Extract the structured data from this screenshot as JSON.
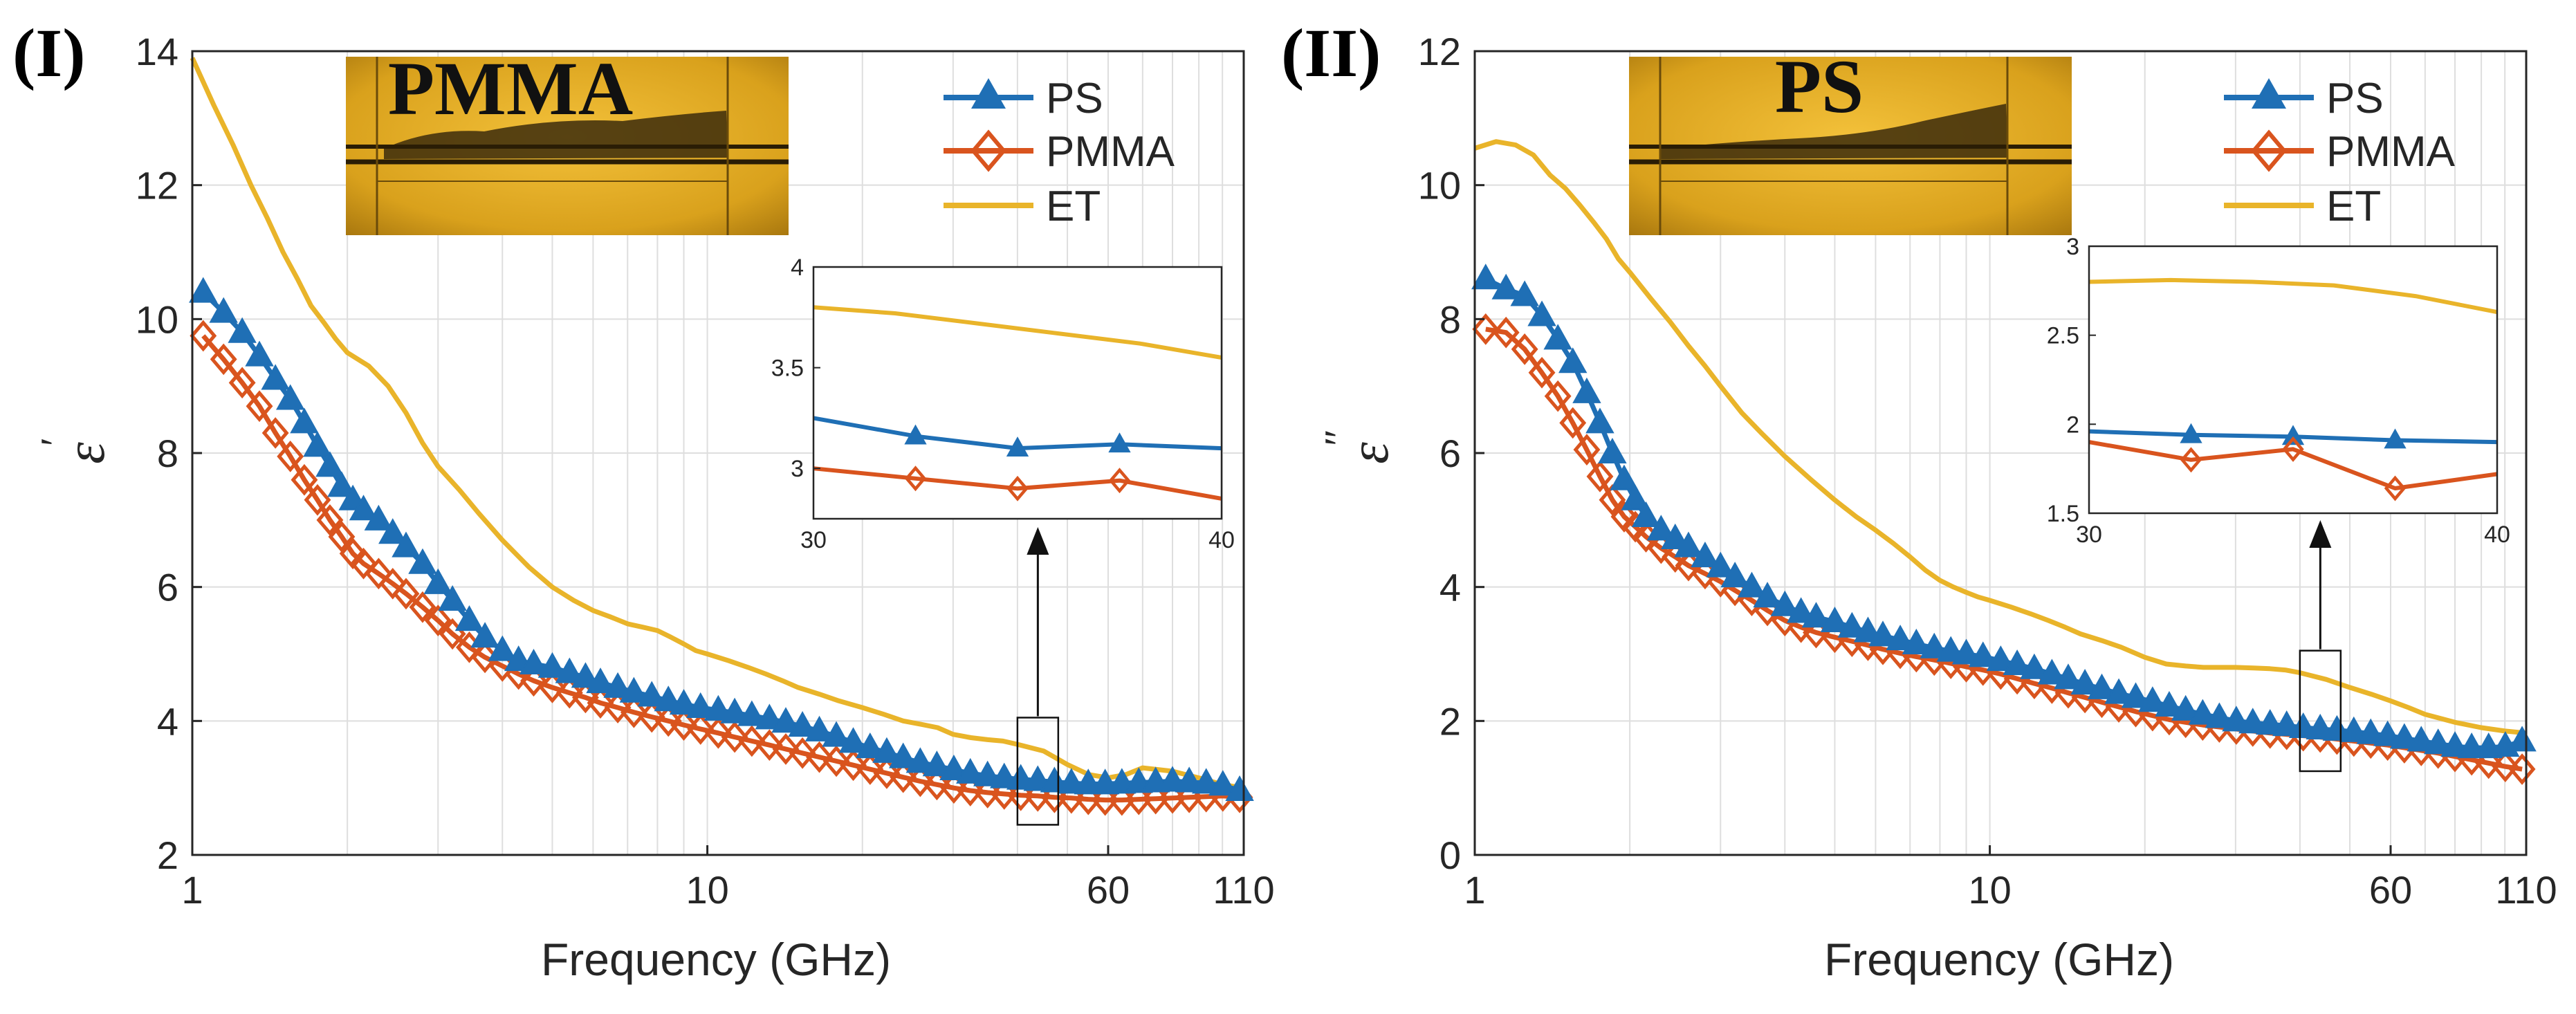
{
  "colors": {
    "PS": "#1f6fb5",
    "PMMA": "#d9541e",
    "ET": "#e9b42a"
  },
  "chart_data": [
    {
      "type": "line",
      "panel_label": "(I)",
      "xscale": "log",
      "xlim": [
        1,
        110
      ],
      "ylim": [
        2,
        14
      ],
      "xticks": [
        1,
        10,
        60,
        110
      ],
      "xtick_labels": [
        "1",
        "10",
        "60",
        "110"
      ],
      "yticks": [
        2,
        4,
        6,
        8,
        10,
        12,
        14
      ],
      "ytick_labels": [
        "2",
        "4",
        "6",
        "8",
        "10",
        "12",
        "14"
      ],
      "xlabel": "Frequency (GHz)",
      "ylabel": "ε′",
      "ylabel_symbol": "ε",
      "ylabel_prime": "′",
      "photo_label": "PMMA",
      "legend": [
        "PS",
        "PMMA",
        "ET"
      ],
      "legend_position": "top-right",
      "grid": true,
      "series": [
        {
          "name": "PS",
          "marker": "triangle",
          "x": [
            1.05,
            1.15,
            1.25,
            1.35,
            1.45,
            1.55,
            1.65,
            1.75,
            1.85,
            1.95,
            2.05,
            2.15,
            2.3,
            2.45,
            2.6,
            2.8,
            3.0,
            3.2,
            3.45,
            3.7,
            4.0,
            4.3,
            4.6,
            5.0,
            5.4,
            5.8,
            6.2,
            6.7,
            7.2,
            7.8,
            8.4,
            9.0,
            9.7,
            10.5,
            11.3,
            12.2,
            13.2,
            14.2,
            15.3,
            16.5,
            17.8,
            19.2,
            20.7,
            22.3,
            24.0,
            25.9,
            27.9,
            30.1,
            32.4,
            35.0,
            37.7,
            40.6,
            43.8,
            47.2,
            50.9,
            54.9,
            59.2,
            63.8,
            68.8,
            74.2,
            80.0,
            86.2,
            93.0,
            100.2,
            108.0
          ],
          "y": [
            10.4,
            10.1,
            9.8,
            9.45,
            9.1,
            8.8,
            8.45,
            8.1,
            7.8,
            7.5,
            7.3,
            7.15,
            7.0,
            6.8,
            6.6,
            6.35,
            6.05,
            5.8,
            5.5,
            5.25,
            5.05,
            4.9,
            4.85,
            4.8,
            4.72,
            4.65,
            4.57,
            4.5,
            4.43,
            4.37,
            4.3,
            4.25,
            4.2,
            4.16,
            4.12,
            4.08,
            4.03,
            3.98,
            3.92,
            3.85,
            3.77,
            3.68,
            3.6,
            3.53,
            3.45,
            3.38,
            3.33,
            3.27,
            3.22,
            3.18,
            3.15,
            3.13,
            3.11,
            3.09,
            3.07,
            3.06,
            3.06,
            3.07,
            3.08,
            3.09,
            3.1,
            3.09,
            3.07,
            3.04,
            2.96
          ]
        },
        {
          "name": "PMMA",
          "marker": "diamond",
          "x": [
            1.05,
            1.15,
            1.25,
            1.35,
            1.45,
            1.55,
            1.65,
            1.75,
            1.85,
            1.95,
            2.05,
            2.15,
            2.3,
            2.45,
            2.6,
            2.8,
            3.0,
            3.2,
            3.45,
            3.7,
            4.0,
            4.3,
            4.6,
            5.0,
            5.4,
            5.8,
            6.2,
            6.7,
            7.2,
            7.8,
            8.4,
            9.0,
            9.7,
            10.5,
            11.3,
            12.2,
            13.2,
            14.2,
            15.3,
            16.5,
            17.8,
            19.2,
            20.7,
            22.3,
            24.0,
            25.9,
            27.9,
            30.1,
            32.4,
            35.0,
            37.7,
            40.6,
            43.8,
            47.2,
            50.9,
            54.9,
            59.2,
            63.8,
            68.8,
            74.2,
            80.0,
            86.2,
            93.0,
            100.2,
            108.0
          ],
          "y": [
            9.75,
            9.4,
            9.05,
            8.7,
            8.3,
            7.95,
            7.6,
            7.3,
            7.0,
            6.75,
            6.5,
            6.35,
            6.2,
            6.05,
            5.9,
            5.7,
            5.5,
            5.3,
            5.1,
            4.95,
            4.82,
            4.7,
            4.6,
            4.5,
            4.42,
            4.35,
            4.27,
            4.2,
            4.13,
            4.06,
            4.0,
            3.94,
            3.88,
            3.82,
            3.76,
            3.7,
            3.64,
            3.58,
            3.52,
            3.46,
            3.4,
            3.34,
            3.28,
            3.22,
            3.16,
            3.1,
            3.05,
            3.0,
            2.96,
            2.93,
            2.91,
            2.89,
            2.88,
            2.86,
            2.85,
            2.83,
            2.82,
            2.82,
            2.83,
            2.84,
            2.85,
            2.86,
            2.87,
            2.88,
            2.86
          ]
        },
        {
          "name": "ET",
          "x": [
            1.0,
            1.1,
            1.2,
            1.3,
            1.4,
            1.5,
            1.6,
            1.7,
            1.8,
            1.9,
            2.0,
            2.2,
            2.4,
            2.6,
            2.8,
            3.0,
            3.3,
            3.6,
            4.0,
            4.5,
            5.0,
            5.5,
            6.0,
            6.5,
            7.0,
            7.5,
            8.0,
            8.5,
            9.0,
            9.5,
            10.0,
            11.0,
            12.0,
            13.0,
            14.0,
            15.0,
            16.5,
            18.0,
            20.0,
            22.0,
            24.0,
            26.0,
            28.0,
            30.0,
            32.5,
            35.0,
            37.5,
            40.0,
            45.0,
            50.0,
            55.0,
            60.0,
            65.0,
            70.0,
            80.0,
            90.0,
            100.0,
            110.0
          ],
          "y": [
            13.9,
            13.2,
            12.6,
            12.0,
            11.5,
            11.0,
            10.6,
            10.2,
            9.95,
            9.7,
            9.5,
            9.3,
            9.0,
            8.6,
            8.15,
            7.8,
            7.45,
            7.1,
            6.7,
            6.3,
            6.0,
            5.8,
            5.65,
            5.55,
            5.45,
            5.4,
            5.35,
            5.25,
            5.15,
            5.05,
            5.0,
            4.9,
            4.8,
            4.7,
            4.6,
            4.5,
            4.4,
            4.3,
            4.2,
            4.1,
            4.0,
            3.95,
            3.9,
            3.8,
            3.75,
            3.72,
            3.7,
            3.65,
            3.55,
            3.35,
            3.2,
            3.15,
            3.2,
            3.3,
            3.25,
            3.15,
            3.05,
            3.0
          ]
        }
      ],
      "inset": {
        "xlim": [
          30,
          40
        ],
        "ylim": [
          2.75,
          4
        ],
        "xticks": [
          30,
          40
        ],
        "xtick_labels": [
          "30",
          "40"
        ],
        "yticks": [
          3,
          3.5,
          4
        ],
        "ytick_labels": [
          "3",
          "3.5",
          "4"
        ],
        "zoom_box": {
          "x": [
            40,
            48
          ],
          "y": [
            2.45,
            4.05
          ]
        },
        "series": [
          {
            "name": "ET",
            "x": [
              30,
              32,
              34,
              36,
              38,
              40
            ],
            "y": [
              3.8,
              3.77,
              3.72,
              3.67,
              3.62,
              3.55
            ]
          },
          {
            "name": "PS",
            "marker": "triangle",
            "x": [
              30,
              32.5,
              35,
              37.5,
              40
            ],
            "y": [
              3.25,
              3.16,
              3.1,
              3.12,
              3.1
            ],
            "marker_x": [
              32.5,
              35,
              37.5
            ]
          },
          {
            "name": "PMMA",
            "marker": "diamond",
            "x": [
              30,
              32.5,
              35,
              37.5,
              40
            ],
            "y": [
              3.0,
              2.95,
              2.9,
              2.94,
              2.85
            ],
            "marker_x": [
              32.5,
              35,
              37.5
            ]
          }
        ]
      }
    },
    {
      "type": "line",
      "panel_label": "(II)",
      "xscale": "log",
      "xlim": [
        1,
        110
      ],
      "ylim": [
        0,
        12
      ],
      "xticks": [
        1,
        10,
        60,
        110
      ],
      "xtick_labels": [
        "1",
        "10",
        "60",
        "110"
      ],
      "yticks": [
        0,
        2,
        4,
        6,
        8,
        10,
        12
      ],
      "ytick_labels": [
        "0",
        "2",
        "4",
        "6",
        "8",
        "10",
        "12"
      ],
      "xlabel": "Frequency (GHz)",
      "ylabel": "ε″",
      "ylabel_symbol": "ε",
      "ylabel_prime": "″",
      "photo_label": "PS",
      "legend": [
        "PS",
        "PMMA",
        "ET"
      ],
      "legend_position": "top-right",
      "grid": true,
      "series": [
        {
          "name": "PS",
          "marker": "triangle",
          "x": [
            1.05,
            1.15,
            1.25,
            1.35,
            1.45,
            1.55,
            1.65,
            1.75,
            1.85,
            1.95,
            2.05,
            2.15,
            2.3,
            2.45,
            2.6,
            2.8,
            3.0,
            3.2,
            3.45,
            3.7,
            4.0,
            4.3,
            4.6,
            5.0,
            5.4,
            5.8,
            6.2,
            6.7,
            7.2,
            7.8,
            8.4,
            9.0,
            9.7,
            10.5,
            11.3,
            12.2,
            13.2,
            14.2,
            15.3,
            16.5,
            17.8,
            19.2,
            20.7,
            22.3,
            24.0,
            25.9,
            27.9,
            30.1,
            32.4,
            35.0,
            37.7,
            40.6,
            43.8,
            47.2,
            50.9,
            54.9,
            59.2,
            63.8,
            68.8,
            74.2,
            80.0,
            86.2,
            93.0,
            100.2,
            108.0
          ],
          "y": [
            8.6,
            8.45,
            8.35,
            8.05,
            7.7,
            7.35,
            6.9,
            6.45,
            6.0,
            5.6,
            5.3,
            5.05,
            4.85,
            4.72,
            4.6,
            4.45,
            4.3,
            4.15,
            4.0,
            3.85,
            3.72,
            3.62,
            3.55,
            3.48,
            3.4,
            3.33,
            3.27,
            3.21,
            3.15,
            3.09,
            3.04,
            3.0,
            2.96,
            2.9,
            2.84,
            2.78,
            2.7,
            2.63,
            2.55,
            2.48,
            2.41,
            2.35,
            2.29,
            2.22,
            2.16,
            2.1,
            2.05,
            2.0,
            1.97,
            1.95,
            1.93,
            1.9,
            1.88,
            1.86,
            1.84,
            1.81,
            1.78,
            1.74,
            1.7,
            1.66,
            1.62,
            1.6,
            1.6,
            1.62,
            1.7
          ]
        },
        {
          "name": "PMMA",
          "marker": "diamond",
          "x": [
            1.05,
            1.15,
            1.25,
            1.35,
            1.45,
            1.55,
            1.65,
            1.75,
            1.85,
            1.95,
            2.05,
            2.15,
            2.3,
            2.45,
            2.6,
            2.8,
            3.0,
            3.2,
            3.45,
            3.7,
            4.0,
            4.3,
            4.6,
            5.0,
            5.4,
            5.8,
            6.2,
            6.7,
            7.2,
            7.8,
            8.4,
            9.0,
            9.7,
            10.5,
            11.3,
            12.2,
            13.2,
            14.2,
            15.3,
            16.5,
            17.8,
            19.2,
            20.7,
            22.3,
            24.0,
            25.9,
            27.9,
            30.1,
            32.4,
            35.0,
            37.7,
            40.6,
            43.8,
            47.2,
            50.9,
            54.9,
            59.2,
            63.8,
            68.8,
            74.2,
            80.0,
            86.2,
            93.0,
            100.2,
            108.0
          ],
          "y": [
            7.85,
            7.8,
            7.55,
            7.2,
            6.85,
            6.45,
            6.05,
            5.65,
            5.3,
            5.05,
            4.9,
            4.75,
            4.58,
            4.45,
            4.32,
            4.2,
            4.08,
            3.95,
            3.8,
            3.65,
            3.5,
            3.4,
            3.32,
            3.25,
            3.19,
            3.13,
            3.07,
            3.01,
            2.96,
            2.91,
            2.86,
            2.81,
            2.76,
            2.7,
            2.63,
            2.56,
            2.49,
            2.42,
            2.35,
            2.28,
            2.21,
            2.14,
            2.08,
            2.02,
            1.98,
            1.94,
            1.91,
            1.88,
            1.85,
            1.82,
            1.8,
            1.78,
            1.76,
            1.73,
            1.7,
            1.67,
            1.64,
            1.6,
            1.56,
            1.52,
            1.47,
            1.42,
            1.37,
            1.32,
            1.28
          ]
        },
        {
          "name": "ET",
          "x": [
            1.0,
            1.1,
            1.2,
            1.3,
            1.4,
            1.5,
            1.6,
            1.7,
            1.8,
            1.9,
            2.0,
            2.2,
            2.4,
            2.6,
            2.8,
            3.0,
            3.3,
            3.6,
            4.0,
            4.5,
            5.0,
            5.5,
            6.0,
            6.5,
            7.0,
            7.5,
            8.0,
            8.5,
            9.0,
            9.5,
            10.0,
            11.0,
            12.0,
            13.0,
            14.0,
            15.0,
            16.5,
            18.0,
            20.0,
            22.0,
            24.0,
            26.0,
            28.0,
            30.0,
            32.5,
            35.0,
            37.5,
            40.0,
            45.0,
            50.0,
            55.0,
            60.0,
            65.0,
            70.0,
            80.0,
            90.0,
            100.0,
            110.0
          ],
          "y": [
            10.55,
            10.65,
            10.6,
            10.45,
            10.15,
            9.95,
            9.7,
            9.45,
            9.2,
            8.9,
            8.7,
            8.3,
            7.95,
            7.6,
            7.3,
            7.0,
            6.6,
            6.3,
            5.95,
            5.6,
            5.3,
            5.05,
            4.85,
            4.65,
            4.45,
            4.25,
            4.1,
            4.0,
            3.92,
            3.85,
            3.8,
            3.7,
            3.6,
            3.5,
            3.4,
            3.3,
            3.2,
            3.1,
            2.95,
            2.85,
            2.82,
            2.8,
            2.8,
            2.8,
            2.79,
            2.78,
            2.76,
            2.72,
            2.62,
            2.5,
            2.4,
            2.3,
            2.2,
            2.1,
            1.98,
            1.9,
            1.85,
            1.82
          ]
        }
      ],
      "inset": {
        "xlim": [
          30,
          40
        ],
        "ylim": [
          1.5,
          3
        ],
        "xticks": [
          30,
          40
        ],
        "xtick_labels": [
          "30",
          "40"
        ],
        "yticks": [
          1.5,
          2,
          2.5,
          3
        ],
        "ytick_labels": [
          "1.5",
          "2",
          "2.5",
          "3"
        ],
        "zoom_box": {
          "x": [
            40,
            48
          ],
          "y": [
            1.25,
            3.05
          ]
        },
        "series": [
          {
            "name": "ET",
            "x": [
              30,
              32,
              34,
              36,
              38,
              40
            ],
            "y": [
              2.8,
              2.81,
              2.8,
              2.78,
              2.72,
              2.63
            ]
          },
          {
            "name": "PS",
            "marker": "triangle",
            "x": [
              30,
              32.5,
              35,
              37.5,
              40
            ],
            "y": [
              1.96,
              1.94,
              1.93,
              1.91,
              1.9
            ],
            "marker_x": [
              32.5,
              35,
              37.5
            ]
          },
          {
            "name": "PMMA",
            "marker": "diamond",
            "x": [
              30,
              32.5,
              35,
              37.5,
              40
            ],
            "y": [
              1.9,
              1.8,
              1.86,
              1.64,
              1.72
            ],
            "marker_x": [
              32.5,
              35,
              37.5
            ]
          }
        ]
      }
    }
  ]
}
